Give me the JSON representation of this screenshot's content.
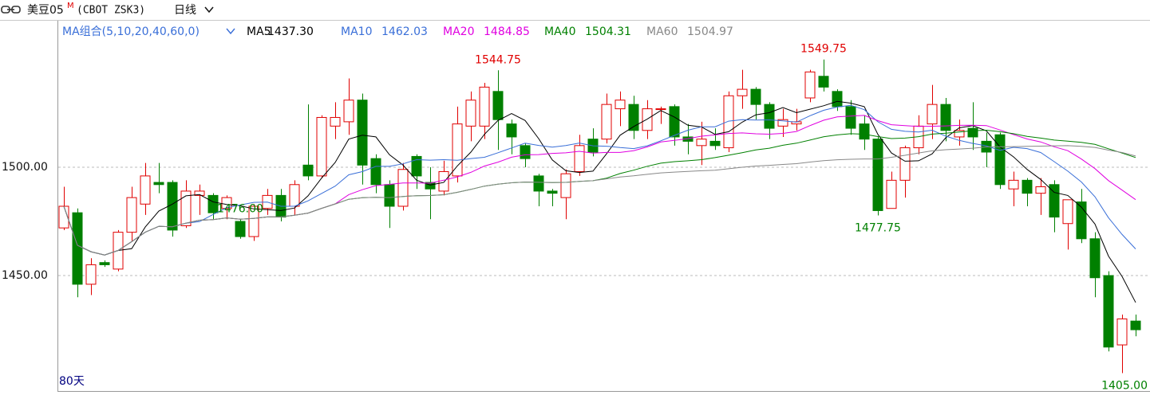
{
  "chart_data": {
    "type": "candlestick",
    "title": "美豆05",
    "title_mark": "M",
    "subtitle": "(CBOT ZSK3)",
    "period": "日线",
    "ma_label": "MA组合(5,10,20,40,60,0)",
    "ma": [
      {
        "name": "MA5",
        "period": 5,
        "value": 1437.3,
        "label": "1437.30",
        "color": "#000000"
      },
      {
        "name": "MA10",
        "period": 10,
        "value": 1462.03,
        "label": "1462.03",
        "color": "#3a6fd8"
      },
      {
        "name": "MA20",
        "period": 20,
        "value": 1484.85,
        "label": "1484.85",
        "color": "#e000e0"
      },
      {
        "name": "MA40",
        "period": 40,
        "value": 1504.31,
        "label": "1504.31",
        "color": "#008000"
      },
      {
        "name": "MA60",
        "period": 60,
        "value": 1504.97,
        "label": "1504.97",
        "color": "#888888"
      }
    ],
    "days_label": "80天",
    "up_color": "#e00000",
    "down_color": "#008000",
    "open": [
      1472,
      1479,
      1446,
      1456,
      1453,
      1470,
      1483,
      1493,
      1493,
      1473,
      1487,
      1487,
      1481,
      1475,
      1468,
      1481,
      1487,
      1482,
      1501,
      1496,
      1519,
      1521,
      1531,
      1504,
      1492,
      1482,
      1505,
      1493,
      1489,
      1496,
      1519,
      1519,
      1535,
      1520,
      1510,
      1496,
      1489,
      1486,
      1498,
      1513,
      1513,
      1527,
      1529,
      1517,
      1527,
      1528,
      1514,
      1510,
      1512,
      1509,
      1533,
      1536,
      1529,
      1519,
      1520,
      1532,
      1542,
      1535,
      1528,
      1520,
      1513,
      1481,
      1494,
      1509,
      1520,
      1529,
      1514,
      1518,
      1512,
      1515,
      1490,
      1494,
      1488,
      1492,
      1474,
      1484,
      1467,
      1450,
      1418,
      1429
    ],
    "high": [
      1491,
      1481,
      1458,
      1457,
      1471,
      1491,
      1502,
      1502,
      1494,
      1494,
      1492,
      1488,
      1487,
      1476,
      1483,
      1490,
      1490,
      1494,
      1529,
      1524,
      1530,
      1541,
      1534,
      1506,
      1494,
      1502,
      1506,
      1500,
      1503,
      1528,
      1535,
      1539,
      1544.75,
      1522,
      1511,
      1497,
      1490,
      1499,
      1515,
      1518,
      1534,
      1535,
      1533,
      1531,
      1528,
      1529,
      1520,
      1521,
      1518,
      1535,
      1545,
      1537,
      1530,
      1527,
      1527,
      1545,
      1549.75,
      1536,
      1531,
      1524,
      1514,
      1498,
      1510,
      1524,
      1538,
      1532,
      1522,
      1530,
      1516,
      1516,
      1498,
      1495,
      1495,
      1494,
      1485,
      1490,
      1470,
      1452,
      1432,
      1432
    ],
    "low": [
      1471,
      1440,
      1441,
      1454,
      1452,
      1466,
      1478,
      1488,
      1468,
      1472,
      1478,
      1476,
      1476,
      1467,
      1466,
      1478,
      1475,
      1478,
      1494,
      1495,
      1513,
      1515,
      1492,
      1488,
      1472,
      1480,
      1490,
      1476,
      1487,
      1493,
      1512,
      1513,
      1508,
      1506,
      1500,
      1482,
      1482,
      1476,
      1496,
      1505,
      1511,
      1519,
      1513,
      1513,
      1520,
      1510,
      1506,
      1501,
      1508,
      1507,
      1527,
      1522,
      1513,
      1514,
      1517,
      1530,
      1535,
      1526,
      1515,
      1508,
      1477.75,
      1481,
      1486,
      1506,
      1513,
      1512,
      1510,
      1508,
      1500,
      1490,
      1482,
      1482,
      1478,
      1470,
      1462,
      1465,
      1440,
      1415,
      1405,
      1422
    ],
    "close": [
      1482,
      1446,
      1455,
      1455,
      1470,
      1486,
      1496,
      1492,
      1471,
      1489,
      1489,
      1479,
      1486,
      1468,
      1482,
      1487,
      1477,
      1492,
      1496,
      1523,
      1523,
      1531,
      1501,
      1492,
      1482,
      1499,
      1496,
      1490,
      1498,
      1520,
      1531,
      1537,
      1522,
      1514,
      1504,
      1489,
      1488,
      1497,
      1510,
      1507,
      1529,
      1531,
      1517,
      1527,
      1527,
      1514,
      1512,
      1513,
      1510,
      1533,
      1536,
      1529,
      1518,
      1522,
      1521,
      1544,
      1537,
      1528,
      1518,
      1513,
      1480,
      1494,
      1509,
      1519,
      1529,
      1517,
      1517,
      1514,
      1507,
      1492,
      1494,
      1488,
      1491,
      1477,
      1485,
      1467,
      1449,
      1417,
      1430,
      1425
    ],
    "annotations": [
      {
        "label": "1544.75",
        "value": 1544.75,
        "color": "#e00000"
      },
      {
        "label": "1549.75",
        "value": 1549.75,
        "color": "#e00000"
      },
      {
        "label": "1476.00",
        "value": 1476,
        "color": "#008000"
      },
      {
        "label": "1477.75",
        "value": 1477.75,
        "color": "#008000"
      },
      {
        "label": "1405.00",
        "value": 1405,
        "color": "#008000"
      }
    ],
    "ylim": [
      1397,
      1566
    ],
    "yticks": [
      {
        "value": 1500,
        "label": "1500.00"
      },
      {
        "value": 1450,
        "label": "1450.00"
      }
    ],
    "grid": true
  }
}
